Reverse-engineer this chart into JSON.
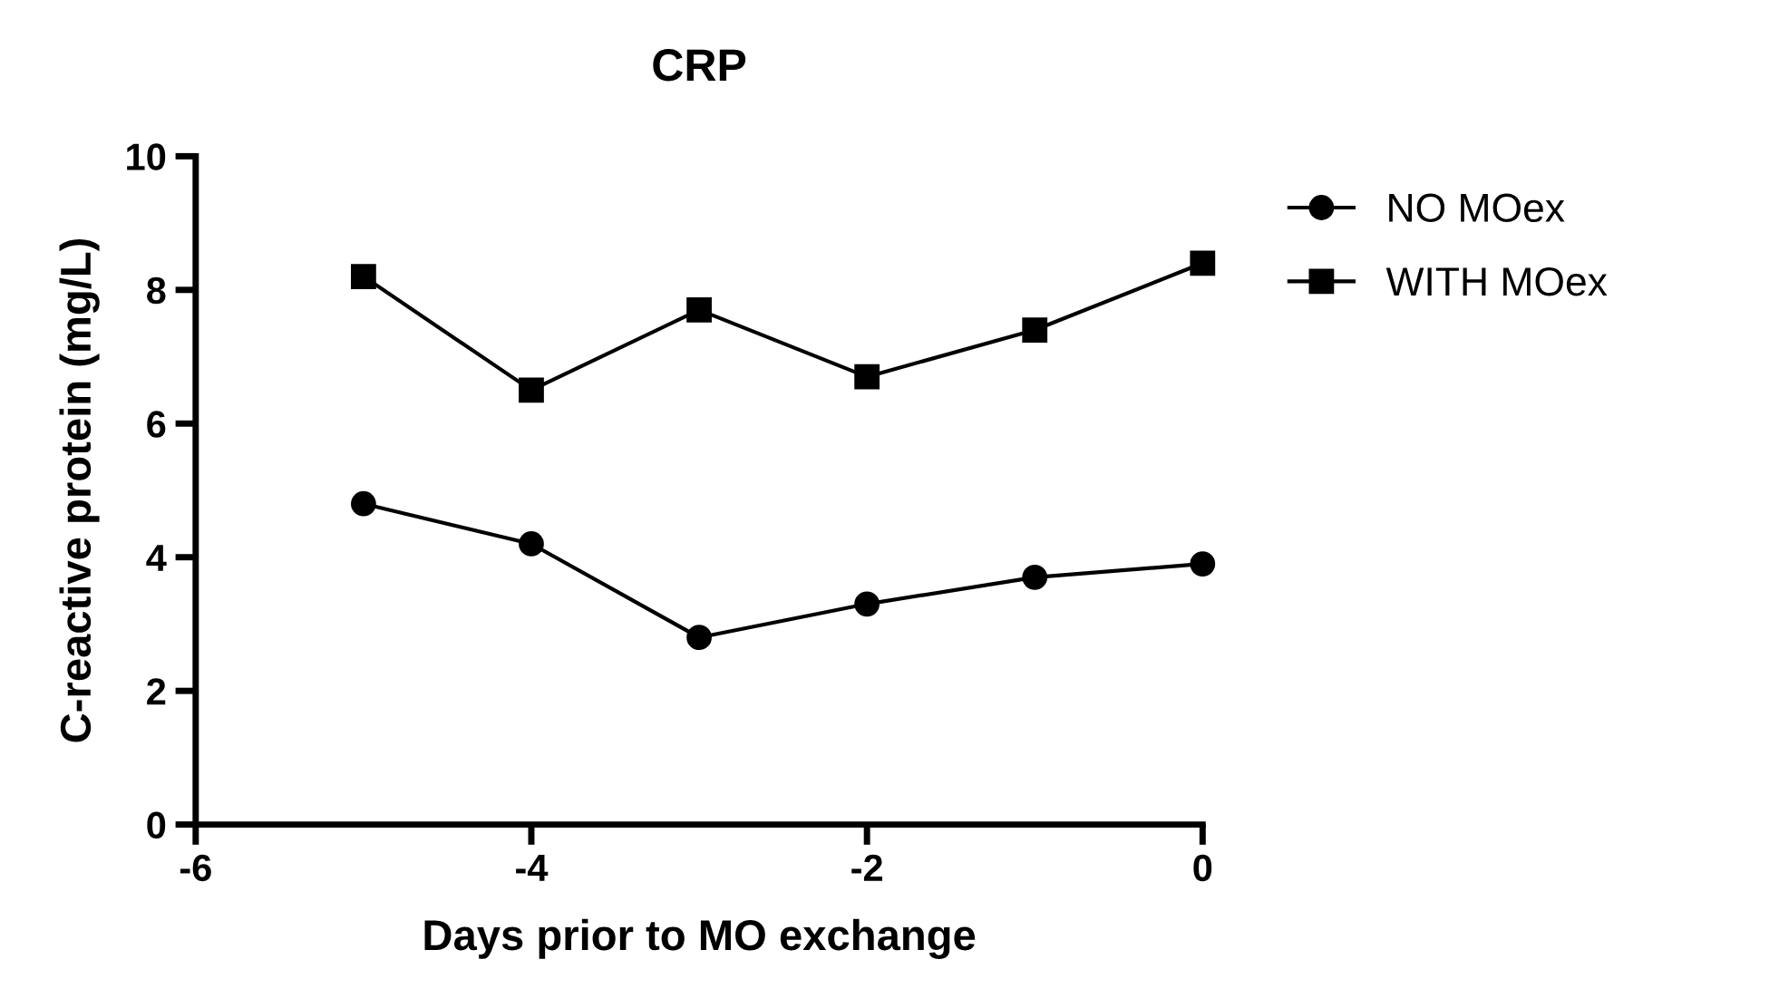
{
  "chart_data": {
    "type": "line",
    "title": "CRP",
    "xlabel": "Days prior to MO exchange",
    "ylabel": "C-reactive protein (mg/L)",
    "x": [
      -5,
      -4,
      -3,
      -2,
      -1,
      0
    ],
    "series": [
      {
        "name": "NO MOex",
        "color": "#000000",
        "marker": "circle",
        "values": [
          4.8,
          4.2,
          2.8,
          3.3,
          3.7,
          3.9
        ]
      },
      {
        "name": "WITH MOex",
        "color": "#000000",
        "marker": "square",
        "values": [
          8.2,
          6.5,
          7.7,
          6.7,
          7.4,
          8.4
        ]
      }
    ],
    "xlim": [
      -6,
      0
    ],
    "xticks": [
      -6,
      -4,
      -2,
      0
    ],
    "ylim": [
      0,
      10
    ],
    "yticks": [
      0,
      2,
      4,
      6,
      8,
      10
    ],
    "grid": false,
    "legend": "top right",
    "line_style": "solid"
  }
}
